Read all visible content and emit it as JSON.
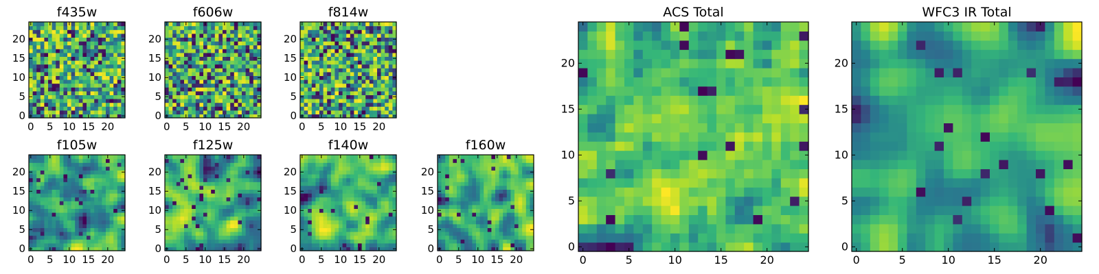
{
  "figure": {
    "colormap": "viridis",
    "colormap_stops": [
      "#440154",
      "#31688e",
      "#26828e",
      "#35b779",
      "#6ece58",
      "#b5de2b",
      "#fde725"
    ]
  },
  "chart_data": [
    {
      "type": "heatmap",
      "title": "f435w",
      "grid_size": 25,
      "xticks": [
        "0",
        "5",
        "10",
        "15",
        "20"
      ],
      "yticks": [
        "0",
        "5",
        "10",
        "15",
        "20"
      ],
      "xlim": [
        0,
        24
      ],
      "ylim": [
        0,
        24
      ],
      "value_range": [
        0,
        1
      ],
      "seed": 11,
      "smoothness": 0,
      "description_of_values": "pixel noise field rendered with viridis colormap"
    },
    {
      "type": "heatmap",
      "title": "f606w",
      "grid_size": 25,
      "xticks": [
        "0",
        "5",
        "10",
        "15",
        "20"
      ],
      "yticks": [
        "0",
        "5",
        "10",
        "15",
        "20"
      ],
      "xlim": [
        0,
        24
      ],
      "ylim": [
        0,
        24
      ],
      "value_range": [
        0,
        1
      ],
      "seed": 23,
      "smoothness": 0
    },
    {
      "type": "heatmap",
      "title": "f814w",
      "grid_size": 25,
      "xticks": [
        "0",
        "5",
        "10",
        "15",
        "20"
      ],
      "yticks": [
        "0",
        "5",
        "10",
        "15",
        "20"
      ],
      "xlim": [
        0,
        24
      ],
      "ylim": [
        0,
        24
      ],
      "value_range": [
        0,
        1
      ],
      "seed": 37,
      "smoothness": 0
    },
    {
      "type": "heatmap",
      "title": "f105w",
      "grid_size": 25,
      "xticks": [
        "0",
        "5",
        "10",
        "15",
        "20"
      ],
      "yticks": [
        "0",
        "5",
        "10",
        "15",
        "20"
      ],
      "xlim": [
        0,
        24
      ],
      "ylim": [
        0,
        24
      ],
      "value_range": [
        0,
        1
      ],
      "seed": 41,
      "smoothness": 2
    },
    {
      "type": "heatmap",
      "title": "f125w",
      "grid_size": 25,
      "xticks": [
        "0",
        "5",
        "10",
        "15",
        "20"
      ],
      "yticks": [
        "0",
        "5",
        "10",
        "15",
        "20"
      ],
      "xlim": [
        0,
        24
      ],
      "ylim": [
        0,
        24
      ],
      "value_range": [
        0,
        1
      ],
      "seed": 53,
      "smoothness": 2
    },
    {
      "type": "heatmap",
      "title": "f140w",
      "grid_size": 25,
      "xticks": [
        "0",
        "5",
        "10",
        "15",
        "20"
      ],
      "yticks": [
        "0",
        "5",
        "10",
        "15",
        "20"
      ],
      "xlim": [
        0,
        24
      ],
      "ylim": [
        0,
        24
      ],
      "value_range": [
        0,
        1
      ],
      "seed": 67,
      "smoothness": 2
    },
    {
      "type": "heatmap",
      "title": "f160w",
      "grid_size": 25,
      "xticks": [
        "0",
        "5",
        "10",
        "15",
        "20"
      ],
      "yticks": [
        "0",
        "5",
        "10",
        "15",
        "20"
      ],
      "xlim": [
        0,
        24
      ],
      "ylim": [
        0,
        24
      ],
      "value_range": [
        0,
        1
      ],
      "seed": 79,
      "smoothness": 2
    },
    {
      "type": "heatmap",
      "title": "ACS Total",
      "grid_size": 25,
      "xticks": [
        "0",
        "5",
        "10",
        "15",
        "20"
      ],
      "yticks": [
        "0",
        "5",
        "10",
        "15",
        "20"
      ],
      "xlim": [
        0,
        24
      ],
      "ylim": [
        0,
        24
      ],
      "value_range": [
        0,
        1
      ],
      "seed": 97,
      "smoothness": 1
    },
    {
      "type": "heatmap",
      "title": "WFC3 IR Total",
      "grid_size": 25,
      "xticks": [
        "0",
        "5",
        "10",
        "15",
        "20"
      ],
      "yticks": [
        "0",
        "5",
        "10",
        "15",
        "20"
      ],
      "xlim": [
        0,
        24
      ],
      "ylim": [
        0,
        24
      ],
      "value_range": [
        0,
        1
      ],
      "seed": 113,
      "smoothness": 3
    }
  ]
}
